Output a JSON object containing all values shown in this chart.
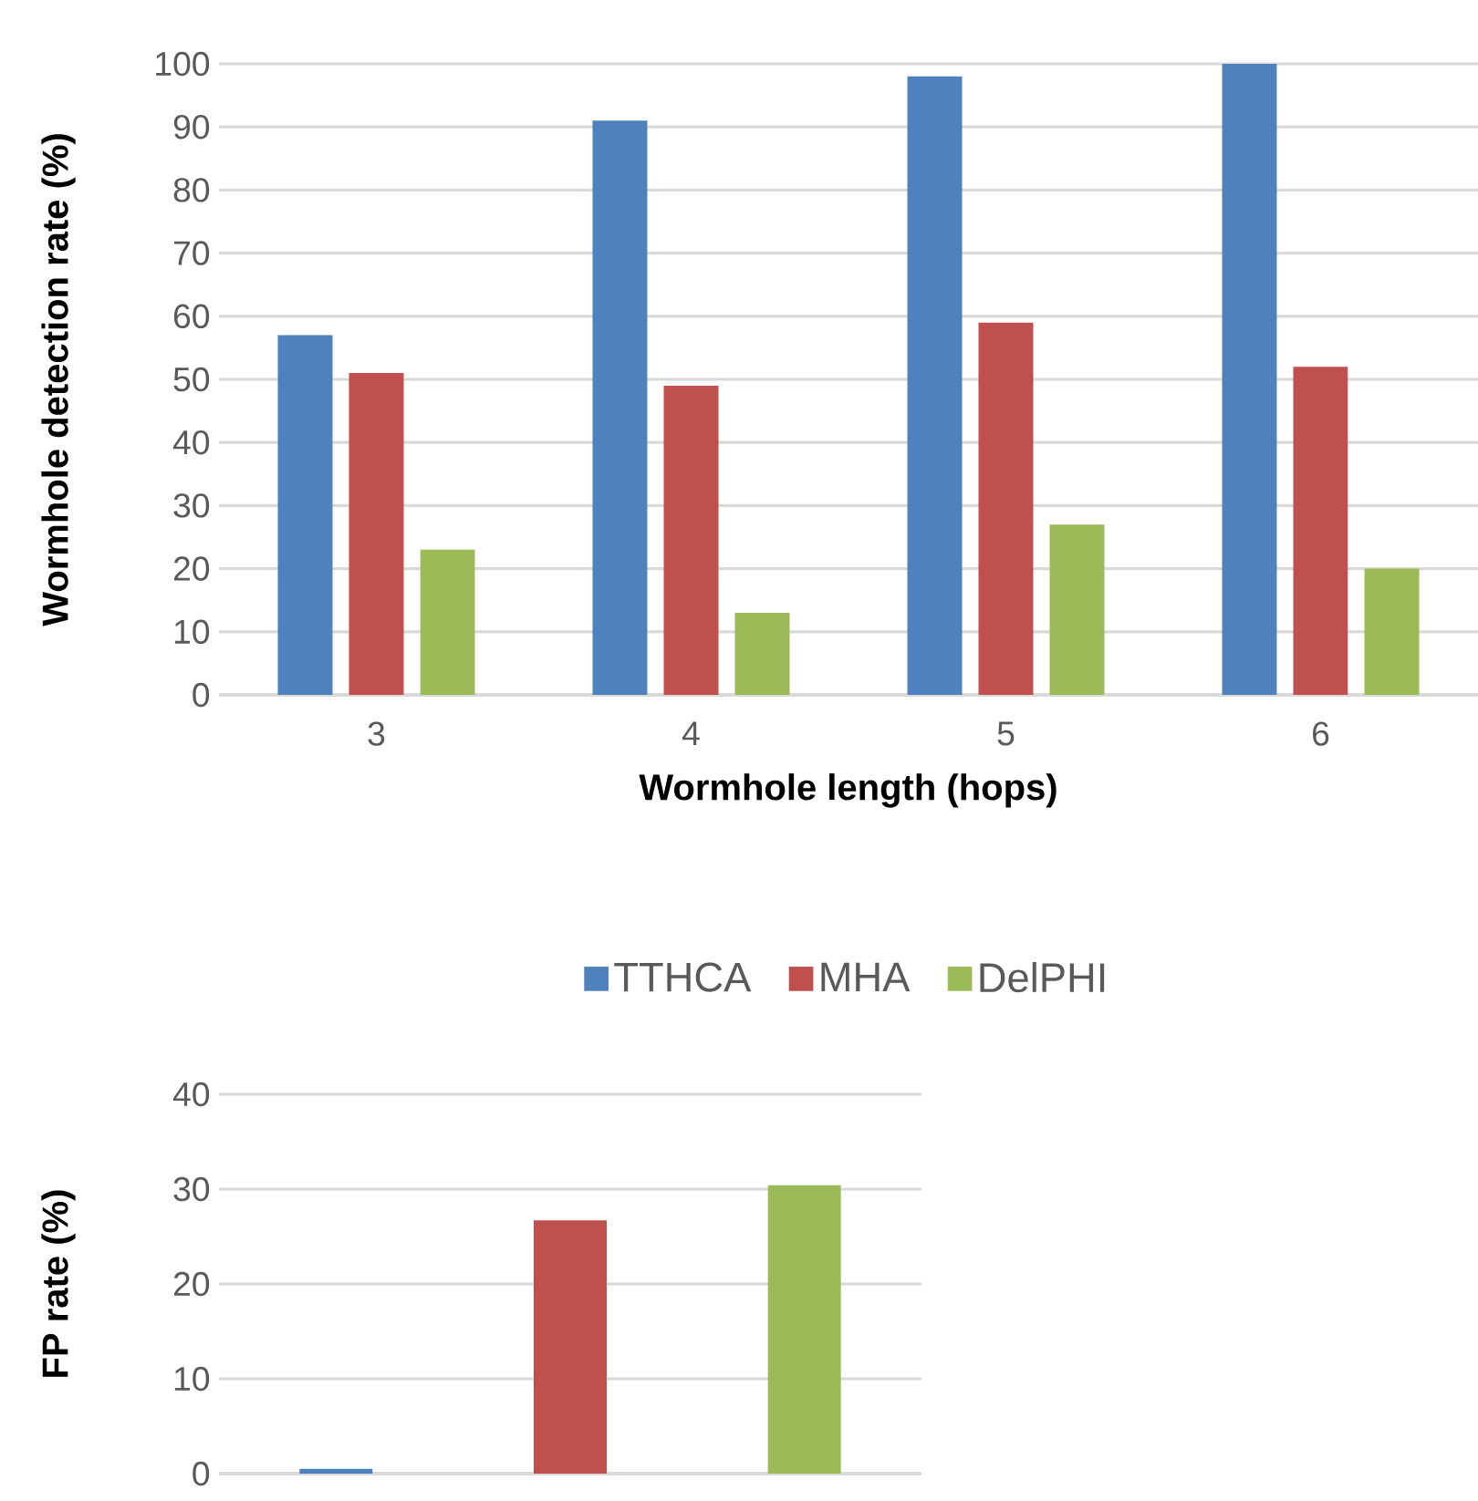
{
  "chart_data": [
    {
      "type": "bar",
      "xlabel": "Wormhole length (hops)",
      "ylabel": "Wormhole detection rate (%)",
      "categories": [
        "3",
        "4",
        "5",
        "6"
      ],
      "series": [
        {
          "name": "TTHCA",
          "color": "#4f81bd",
          "values": [
            57,
            91,
            98,
            100
          ]
        },
        {
          "name": "MHA",
          "color": "#c0504d",
          "values": [
            51,
            49,
            59,
            52
          ]
        },
        {
          "name": "DelPHI",
          "color": "#9bbb59",
          "values": [
            23,
            13,
            27,
            20
          ]
        }
      ],
      "ylim": [
        0,
        100
      ],
      "yticks": [
        0,
        10,
        20,
        30,
        40,
        50,
        60,
        70,
        80,
        90,
        100
      ],
      "grid": "y",
      "legend": "bottom"
    },
    {
      "type": "bar",
      "ylabel": "FP rate (%)",
      "categories": [
        null,
        null,
        null
      ],
      "values": [
        0.5,
        26.7,
        30.4
      ],
      "colors": [
        "#4f81bd",
        "#c0504d",
        "#9bbb59"
      ],
      "ylim": [
        0,
        40
      ],
      "yticks": [
        0,
        10,
        20,
        30,
        40
      ],
      "grid": "y",
      "tick_labels": "y"
    }
  ]
}
